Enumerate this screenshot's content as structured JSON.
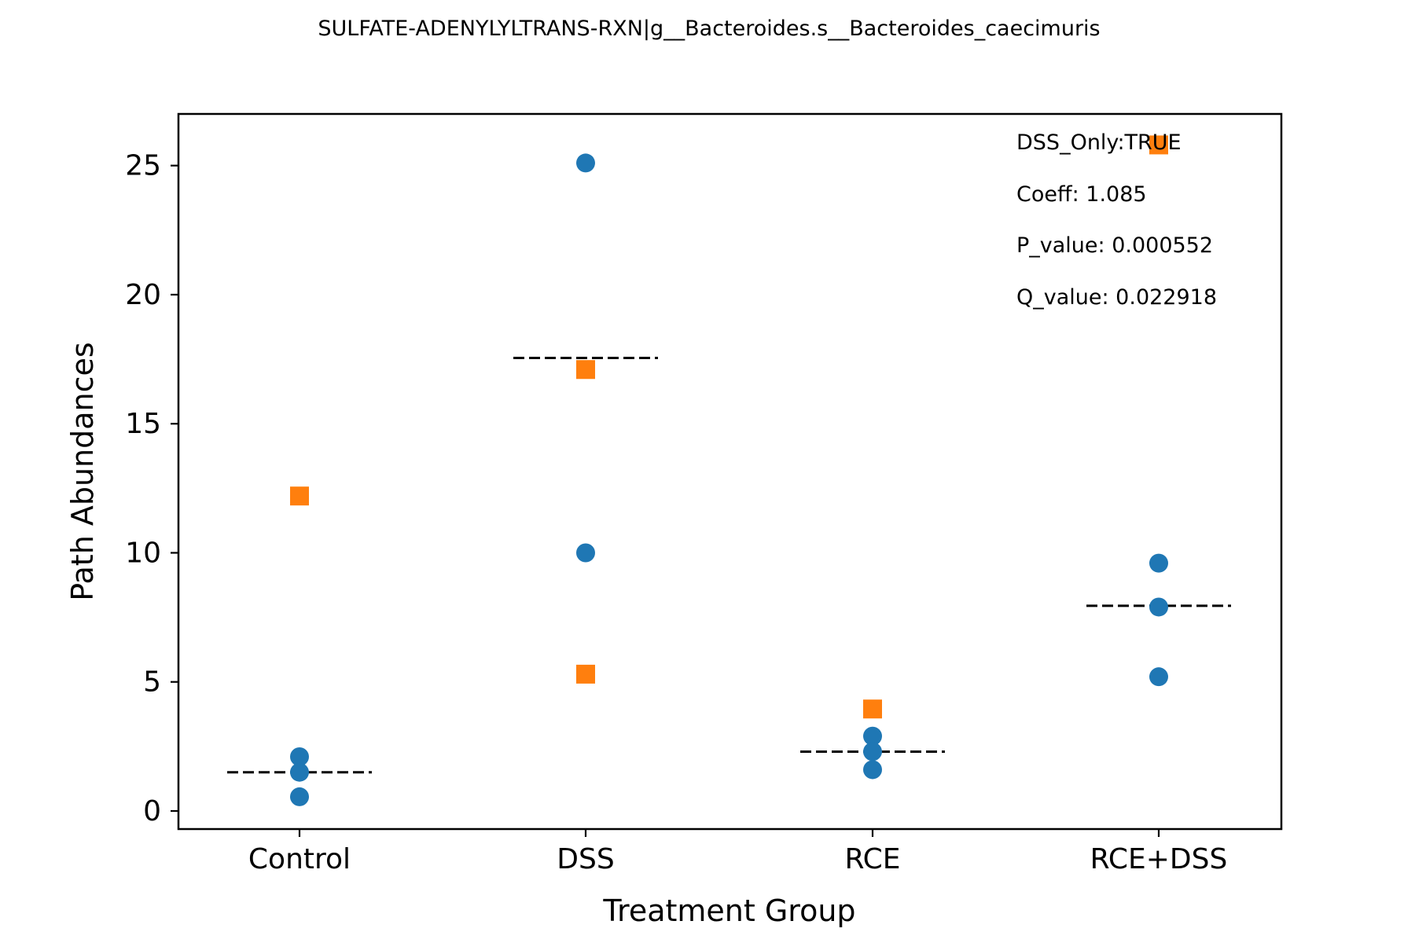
{
  "chart_data": {
    "type": "scatter",
    "title": "SULFATE-ADENYLYLTRANS-RXN|g__Bacteroides.s__Bacteroides_caecimuris",
    "xlabel": "Treatment Group",
    "ylabel": "Path Abundances",
    "categories": [
      "Control",
      "DSS",
      "RCE",
      "RCE+DSS"
    ],
    "ylim": [
      -0.7,
      27
    ],
    "yticks": [
      0,
      5,
      10,
      15,
      20,
      25
    ],
    "grid": false,
    "series": [
      {
        "marker": "circle",
        "color": "#1f77b4",
        "points": [
          {
            "category": "Control",
            "y": 2.1
          },
          {
            "category": "Control",
            "y": 1.5
          },
          {
            "category": "Control",
            "y": 0.55
          },
          {
            "category": "DSS",
            "y": 25.1
          },
          {
            "category": "DSS",
            "y": 10.0
          },
          {
            "category": "RCE",
            "y": 2.9
          },
          {
            "category": "RCE",
            "y": 2.3
          },
          {
            "category": "RCE",
            "y": 1.6
          },
          {
            "category": "RCE+DSS",
            "y": 9.6
          },
          {
            "category": "RCE+DSS",
            "y": 7.9
          },
          {
            "category": "RCE+DSS",
            "y": 5.2
          }
        ]
      },
      {
        "marker": "square",
        "color": "#ff7f0e",
        "points": [
          {
            "category": "Control",
            "y": 12.2
          },
          {
            "category": "DSS",
            "y": 17.1
          },
          {
            "category": "DSS",
            "y": 5.3
          },
          {
            "category": "RCE",
            "y": 3.95
          },
          {
            "category": "RCE+DSS",
            "y": 25.8
          }
        ]
      }
    ],
    "group_means": [
      {
        "category": "Control",
        "y": 1.5
      },
      {
        "category": "DSS",
        "y": 17.55
      },
      {
        "category": "RCE",
        "y": 2.3
      },
      {
        "category": "RCE+DSS",
        "y": 7.95
      }
    ],
    "annotations": [
      "DSS_Only:TRUE",
      "Coeff: 1.085",
      "P_value: 0.000552",
      "Q_value: 0.022918"
    ]
  }
}
